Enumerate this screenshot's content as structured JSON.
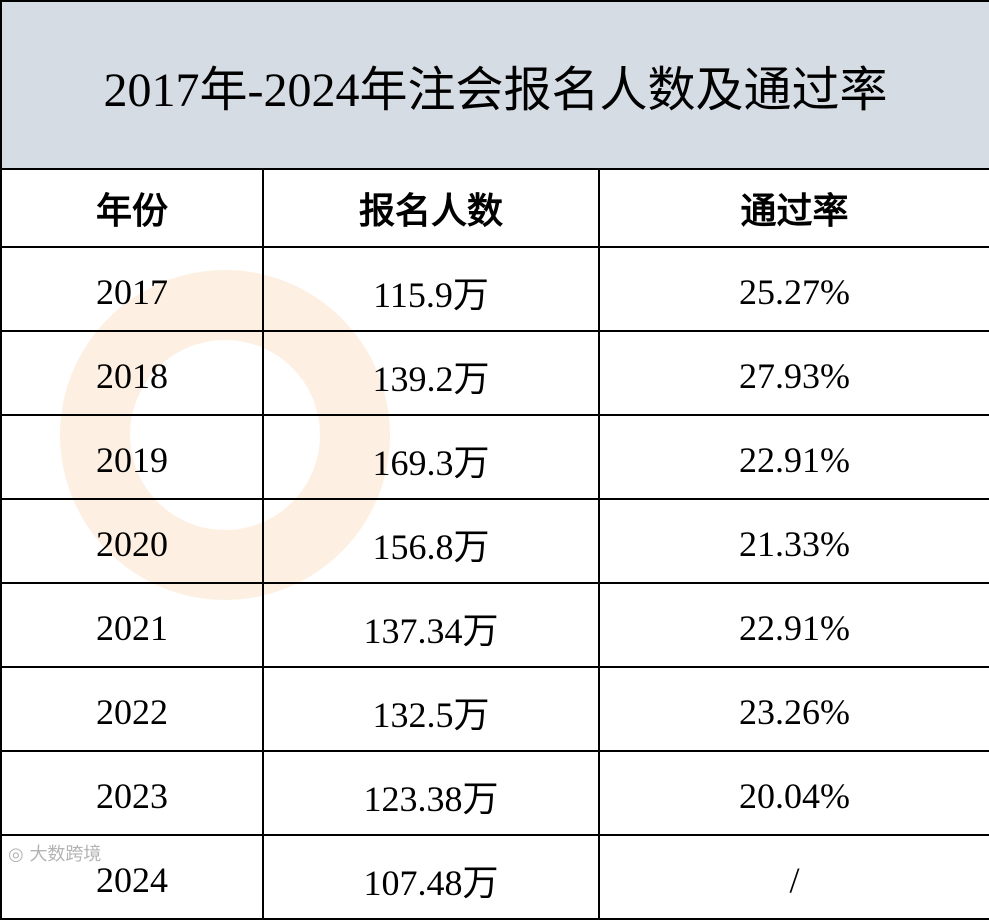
{
  "title": "2017年-2024年注会报名人数及通过率",
  "columns": [
    "年份",
    "报名人数",
    "通过率"
  ],
  "rows": [
    [
      "2017",
      "115.9万",
      "25.27%"
    ],
    [
      "2018",
      "139.2万",
      "27.93%"
    ],
    [
      "2019",
      "169.3万",
      "22.91%"
    ],
    [
      "2020",
      "156.8万",
      "21.33%"
    ],
    [
      "2021",
      "137.34万",
      "22.91%"
    ],
    [
      "2022",
      "132.5万",
      "23.26%"
    ],
    [
      "2023",
      "123.38万",
      "20.04%"
    ],
    [
      "2024",
      "107.48万",
      "/"
    ]
  ],
  "watermark_logo": "大数跨境",
  "colors": {
    "title_bg": "#d6dce4",
    "border": "#000000",
    "watermark_orange": "#f6c48c"
  }
}
